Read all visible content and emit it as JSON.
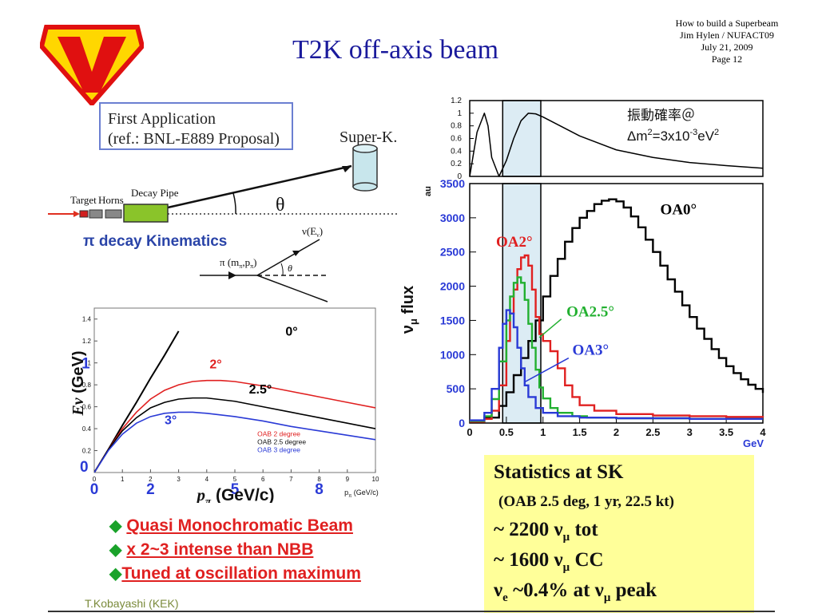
{
  "header": {
    "title": "T2K off-axis beam",
    "meta": [
      "How to build a Superbeam",
      "Jim Hylen / NUFACT09",
      "July 21, 2009",
      "Page 12"
    ]
  },
  "logo": {
    "letter": "V",
    "fill": "#ffd700",
    "border": "#e01010"
  },
  "kinematics": {
    "box_line1": "First Application",
    "box_line2": "(ref.: BNL-E889 Proposal)",
    "detector": "Super-K.",
    "angle": "θ",
    "target": "Target",
    "horns": "Horns",
    "pipe": "Decay Pipe",
    "heading": "π decay Kinematics",
    "pi_label": "π (m",
    "pi_sub": "π",
    "pi_mid": ",p",
    "pi_sub2": "π",
    "pi_end": ")",
    "nu_label": "ν(E",
    "nu_sub": "ν",
    "nu_end": ")",
    "theta_small": "θ"
  },
  "bullets": [
    {
      "icon": "◆",
      "text": "Quasi Monochromatic Beam"
    },
    {
      "icon": "◆",
      "text": "x 2~3 intense than NBB"
    },
    {
      "icon": "◆",
      "text": "Tuned at oscillation maximum"
    }
  ],
  "footer": "T.Kobayashi (KEK)",
  "stats": {
    "heading": "Statistics at SK",
    "sub": "(OAB 2.5 deg, 1 yr, 22.5 kt)",
    "lines": [
      {
        "pre": "~ 2200 ν",
        "sub": "μ",
        "post": " tot"
      },
      {
        "pre": "~ 1600 ν",
        "sub": "μ",
        "post": " CC"
      },
      {
        "pre": "ν",
        "sub": "e",
        "post": "  ~0.4% at ν",
        "sub2": "μ",
        "post2": " peak"
      }
    ]
  },
  "chart_data": [
    {
      "type": "line",
      "title": "",
      "xlabel": "p_π (GeV/c)",
      "ylabel": "Eν (GeV)",
      "xlim": [
        0,
        10
      ],
      "ylim": [
        0,
        1.5
      ],
      "x_ticks": [
        "0",
        "1",
        "2",
        "3",
        "4",
        "5",
        "6",
        "7",
        "8",
        "9",
        "10"
      ],
      "y_ticks": [
        "0.2",
        "0.4",
        "0.6",
        "0.8",
        "1",
        "1.2",
        "1.4"
      ],
      "x_annot": {
        "big": [
          "0",
          "2",
          "5",
          "8"
        ],
        "unit": "p",
        "unit_sub": "π",
        "unit_end": " (GeV/c)"
      },
      "y_annot_big": [
        "1",
        "0"
      ],
      "xlabel_pre": "p",
      "xlabel_sub": "π",
      "xlabel_post": " (GeV/c)",
      "ylabel_pre": "Eν",
      "ylabel_post": " (GeV)",
      "curve_labels": [
        "0°",
        "2°",
        "2.5°",
        "3°"
      ],
      "legend": [
        "OAB 2 degree",
        "OAB 2.5 degree",
        "OAB 3 degree"
      ],
      "series": [
        {
          "name": "0°",
          "color": "#000000",
          "x": [
            0,
            0.5,
            1,
            1.5,
            2,
            2.5,
            3
          ],
          "y": [
            0,
            0.21,
            0.43,
            0.64,
            0.86,
            1.07,
            1.29
          ]
        },
        {
          "name": "OAB 2 degree",
          "color": "#e02020",
          "x": [
            0,
            0.5,
            1,
            1.5,
            2,
            2.5,
            3,
            3.5,
            4,
            4.5,
            5,
            6,
            7,
            8,
            9,
            10
          ],
          "y": [
            0,
            0.21,
            0.4,
            0.55,
            0.67,
            0.75,
            0.8,
            0.83,
            0.84,
            0.84,
            0.83,
            0.79,
            0.74,
            0.69,
            0.64,
            0.59
          ]
        },
        {
          "name": "OAB 2.5 degree",
          "color": "#000000",
          "x": [
            0,
            0.5,
            1,
            1.5,
            2,
            2.5,
            3,
            3.5,
            4,
            5,
            6,
            7,
            8,
            9,
            10
          ],
          "y": [
            0,
            0.21,
            0.38,
            0.5,
            0.59,
            0.64,
            0.67,
            0.68,
            0.68,
            0.65,
            0.6,
            0.55,
            0.5,
            0.45,
            0.4
          ]
        },
        {
          "name": "OAB 3 degree",
          "color": "#2a3ad6",
          "x": [
            0,
            0.5,
            1,
            1.5,
            2,
            2.5,
            3,
            3.5,
            4,
            5,
            6,
            7,
            8,
            9,
            10
          ],
          "y": [
            0,
            0.2,
            0.35,
            0.45,
            0.51,
            0.54,
            0.55,
            0.55,
            0.54,
            0.51,
            0.47,
            0.42,
            0.38,
            0.34,
            0.3
          ]
        }
      ]
    },
    {
      "type": "line",
      "title": "振動確率＠",
      "title2_pre": "Δm",
      "title2_sup": "2",
      "title2_mid": "=3x10",
      "title2_sup2": "-3",
      "title2_end": "eV",
      "title2_sup3": "2",
      "xlabel": "GeV",
      "ylabel": "",
      "xlim": [
        0,
        4
      ],
      "ylim": [
        0,
        1.2
      ],
      "y_ticks": [
        "1.2",
        "1",
        "0.8",
        "0.6",
        "0.4",
        "0.2",
        "0"
      ],
      "series": [
        {
          "name": "",
          "color": "#000000",
          "x": [
            0,
            0.1,
            0.2,
            0.25,
            0.3,
            0.4,
            0.5,
            0.6,
            0.7,
            0.8,
            0.9,
            1.0,
            1.2,
            1.5,
            2.0,
            2.5,
            3.0,
            3.5,
            4.0
          ],
          "y": [
            0.0,
            0.7,
            1.0,
            0.8,
            0.3,
            0.0,
            0.25,
            0.6,
            0.88,
            1.0,
            0.99,
            0.94,
            0.82,
            0.64,
            0.42,
            0.3,
            0.22,
            0.17,
            0.13
          ]
        }
      ]
    },
    {
      "type": "line",
      "title": "",
      "xlabel": "GeV",
      "ylabel": "ν_μ flux",
      "ylabel_pre": "ν",
      "ylabel_sub": "μ",
      "ylabel_post": " flux",
      "unit": "au",
      "xlim": [
        0,
        4
      ],
      "ylim": [
        0,
        3500
      ],
      "x_ticks": [
        "0",
        "0.5",
        "1",
        "1.5",
        "2",
        "2.5",
        "3",
        "3.5",
        "4"
      ],
      "y_ticks": [
        "3500",
        "3000",
        "2500",
        "2000",
        "1500",
        "1000",
        "500",
        "0"
      ],
      "highlight_band": [
        0.45,
        0.97
      ],
      "series": [
        {
          "name": "OA0°",
          "color": "#000000",
          "x": [
            0,
            0.2,
            0.4,
            0.5,
            0.6,
            0.7,
            0.8,
            0.9,
            1.0,
            1.1,
            1.2,
            1.3,
            1.4,
            1.5,
            1.6,
            1.7,
            1.8,
            1.9,
            2.0,
            2.1,
            2.2,
            2.3,
            2.4,
            2.5,
            2.6,
            2.7,
            2.8,
            2.9,
            3.0,
            3.1,
            3.2,
            3.3,
            3.4,
            3.5,
            3.6,
            3.7,
            3.8,
            3.9,
            4.0
          ],
          "y": [
            20,
            80,
            250,
            450,
            700,
            950,
            1200,
            1500,
            1850,
            2150,
            2400,
            2650,
            2850,
            3000,
            3100,
            3200,
            3250,
            3270,
            3240,
            3150,
            3020,
            2860,
            2680,
            2500,
            2300,
            2100,
            1920,
            1720,
            1550,
            1380,
            1230,
            1080,
            950,
            830,
            730,
            640,
            560,
            500,
            440
          ]
        },
        {
          "name": "OA2°",
          "color": "#e02020",
          "x": [
            0,
            0.2,
            0.3,
            0.4,
            0.5,
            0.55,
            0.6,
            0.65,
            0.7,
            0.75,
            0.8,
            0.85,
            0.9,
            0.95,
            1.0,
            1.1,
            1.2,
            1.3,
            1.4,
            1.5,
            1.7,
            2.0,
            2.5,
            3.0,
            3.5,
            4.0
          ],
          "y": [
            20,
            60,
            180,
            550,
            1200,
            1600,
            1950,
            2250,
            2420,
            2450,
            2300,
            1950,
            1550,
            1300,
            1200,
            1050,
            800,
            550,
            380,
            260,
            180,
            130,
            110,
            100,
            90,
            80
          ]
        },
        {
          "name": "OA2.5°",
          "color": "#22b030",
          "x": [
            0,
            0.2,
            0.3,
            0.4,
            0.5,
            0.55,
            0.6,
            0.65,
            0.7,
            0.75,
            0.8,
            0.85,
            0.9,
            0.95,
            1.0,
            1.1,
            1.2,
            1.4,
            1.6,
            2.0,
            3.0,
            4.0
          ],
          "y": [
            30,
            100,
            350,
            900,
            1500,
            1850,
            2050,
            2130,
            2050,
            1800,
            1450,
            1100,
            780,
            520,
            360,
            220,
            150,
            100,
            80,
            70,
            60,
            60
          ]
        },
        {
          "name": "OA3°",
          "color": "#2a3ad6",
          "x": [
            0,
            0.2,
            0.3,
            0.4,
            0.45,
            0.5,
            0.55,
            0.6,
            0.65,
            0.7,
            0.75,
            0.8,
            0.9,
            1.0,
            1.2,
            1.5,
            2.0,
            3.0,
            4.0
          ],
          "y": [
            40,
            150,
            500,
            1100,
            1450,
            1650,
            1600,
            1400,
            1100,
            800,
            550,
            380,
            220,
            150,
            100,
            80,
            70,
            60,
            60
          ]
        }
      ],
      "curve_labels": [
        "OA0°",
        "OA2°",
        "OA2.5°",
        "OA3°"
      ]
    }
  ]
}
